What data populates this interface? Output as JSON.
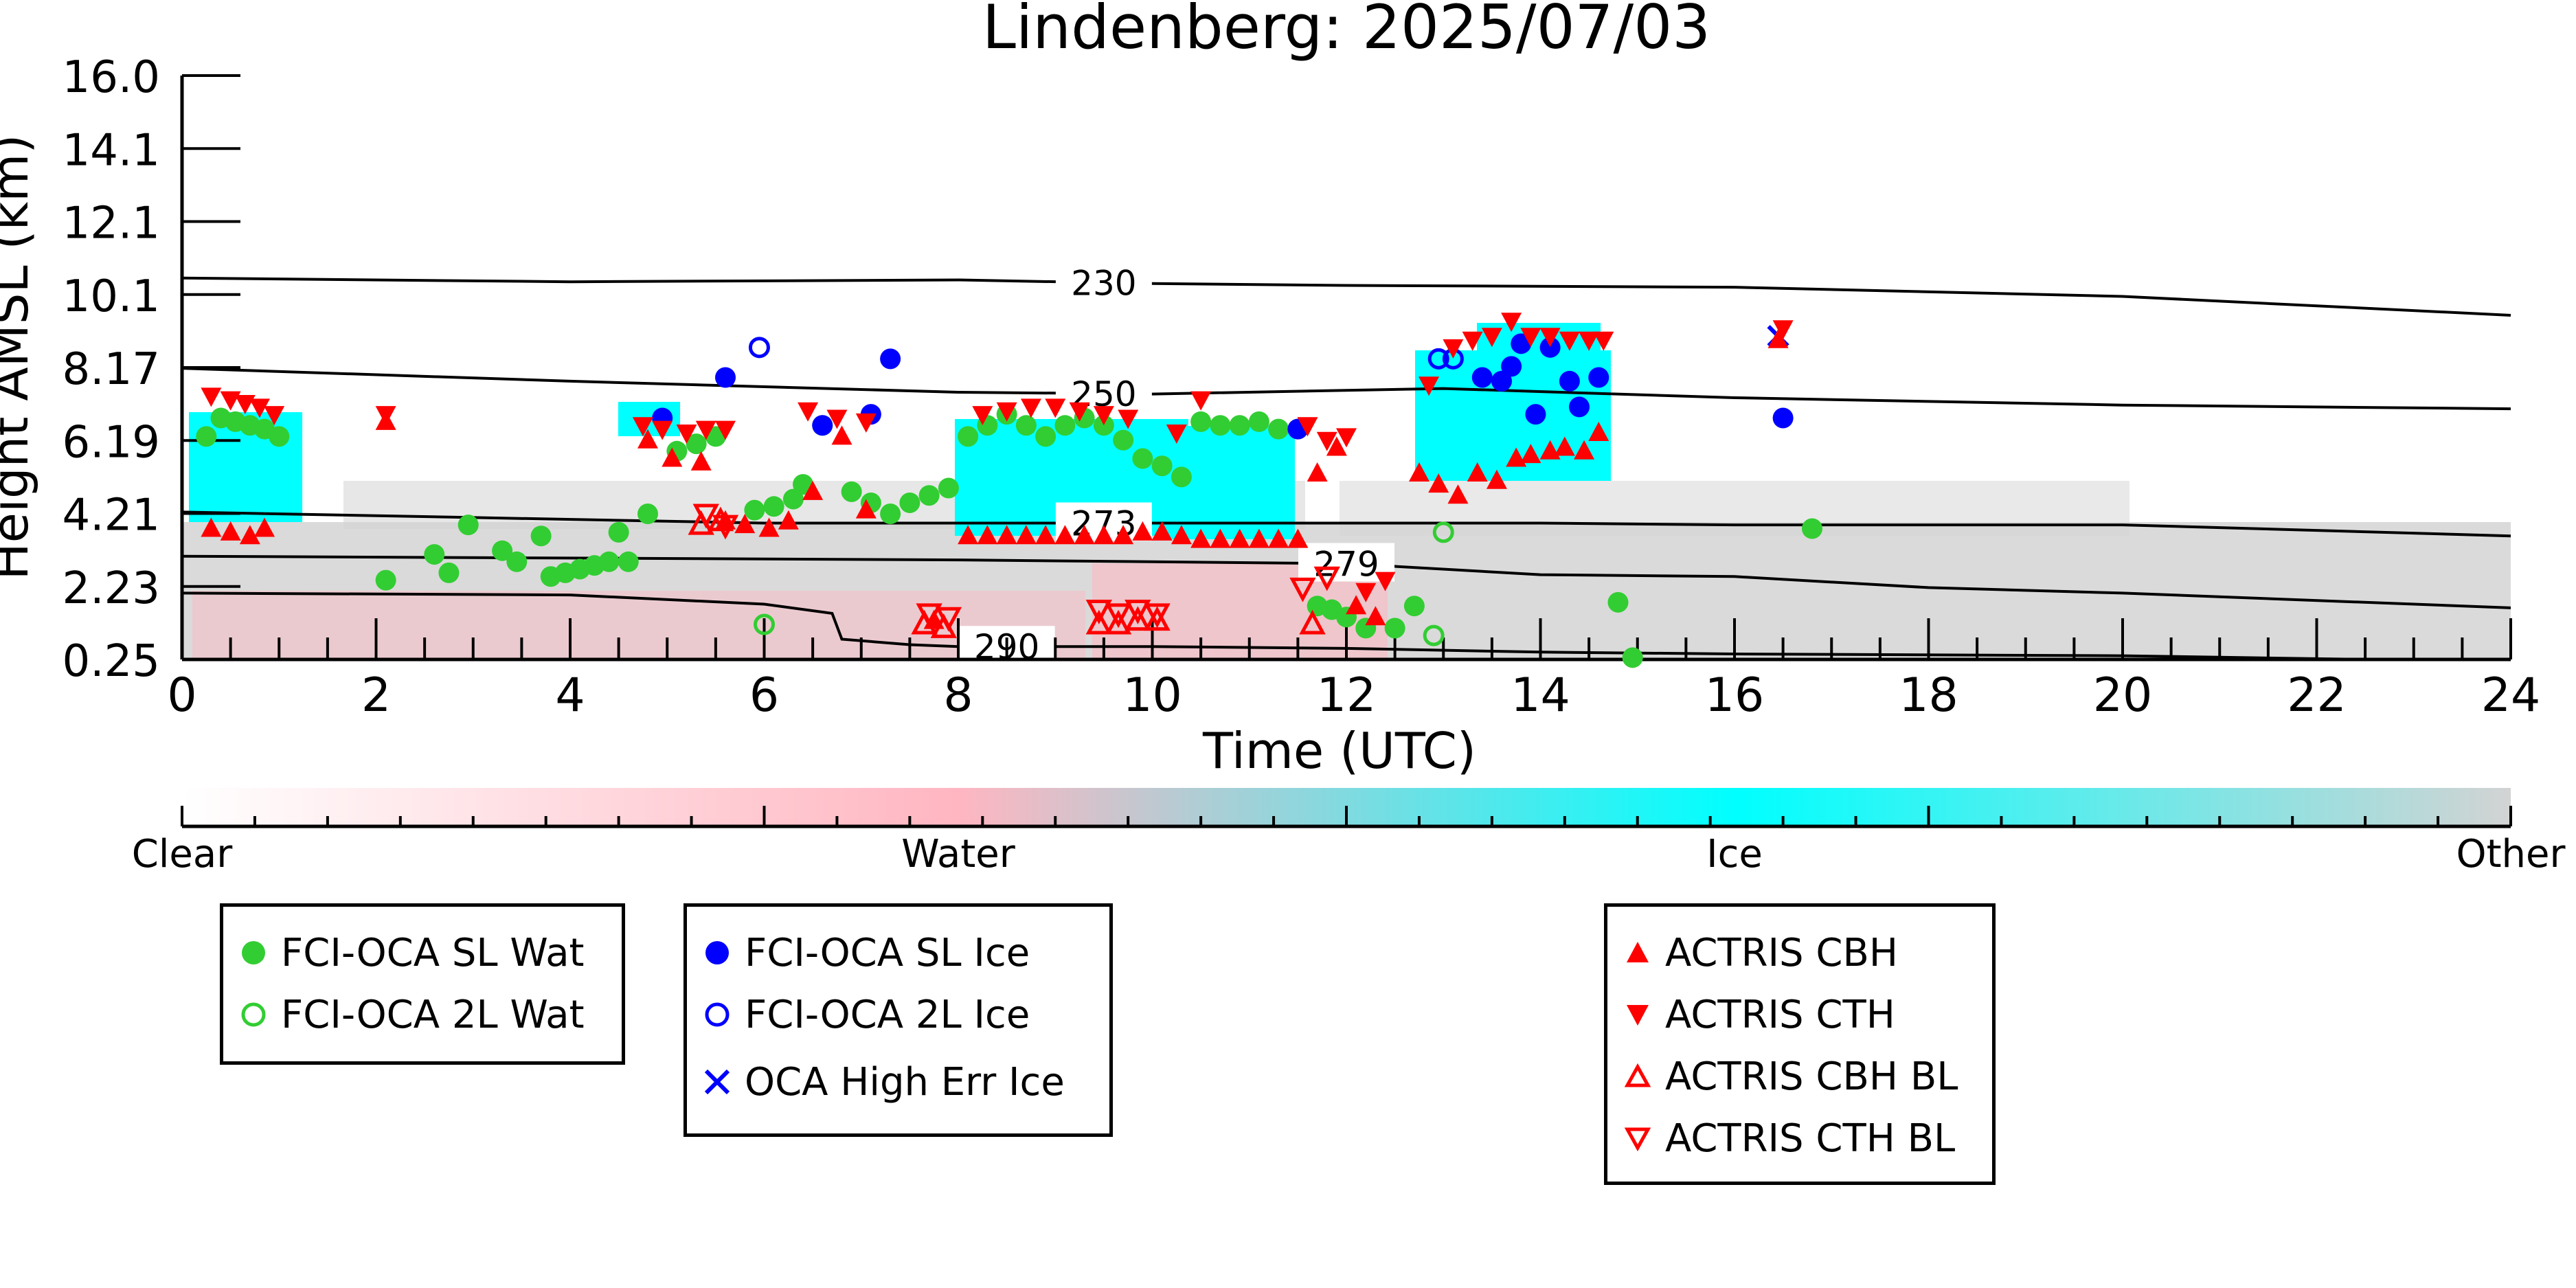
{
  "chart_data": {
    "type": "scatter",
    "title": "Lindenberg: 2025/07/03",
    "xlabel": "Time (UTC)",
    "ylabel": "Height AMSL (km)",
    "xlim": [
      0,
      24
    ],
    "ylim": [
      0.25,
      16.0
    ],
    "x_ticks": [
      0,
      2,
      4,
      6,
      8,
      10,
      12,
      14,
      16,
      18,
      20,
      22,
      24
    ],
    "y_ticks": [
      "0.25",
      "2.23",
      "4.21",
      "6.19",
      "8.17",
      "10.1",
      "12.1",
      "14.1",
      "16.0"
    ],
    "y_tick_values": [
      0.25,
      2.23,
      4.21,
      6.19,
      8.17,
      10.1,
      12.1,
      14.1,
      16.0
    ],
    "colorbar": {
      "labels": [
        "Clear",
        "Water",
        "Ice",
        "Other"
      ],
      "colors": [
        "#ffffff",
        "#ffb6c1",
        "#00ffff",
        "#d3d3d3"
      ]
    },
    "contours": [
      {
        "label": "230",
        "label_x": 9.5,
        "points": [
          [
            0,
            10.55
          ],
          [
            4,
            10.45
          ],
          [
            8,
            10.5
          ],
          [
            10,
            10.4
          ],
          [
            12,
            10.35
          ],
          [
            16,
            10.3
          ],
          [
            20,
            10.05
          ],
          [
            24,
            9.55
          ]
        ]
      },
      {
        "label": "250",
        "label_x": 9.5,
        "points": [
          [
            0,
            8.15
          ],
          [
            4,
            7.8
          ],
          [
            8,
            7.5
          ],
          [
            10,
            7.45
          ],
          [
            13,
            7.6
          ],
          [
            16,
            7.35
          ],
          [
            20,
            7.15
          ],
          [
            24,
            7.05
          ]
        ]
      },
      {
        "label": "273",
        "label_x": 9.5,
        "points": [
          [
            0,
            4.25
          ],
          [
            3,
            4.1
          ],
          [
            6,
            3.95
          ],
          [
            8,
            3.95
          ],
          [
            10,
            3.95
          ],
          [
            12,
            3.95
          ],
          [
            14,
            3.95
          ],
          [
            16,
            3.9
          ],
          [
            20,
            3.9
          ],
          [
            24,
            3.6
          ]
        ]
      },
      {
        "label": "279",
        "label_x": 12.0,
        "points": [
          [
            0,
            3.05
          ],
          [
            4,
            3.0
          ],
          [
            8,
            2.95
          ],
          [
            12,
            2.85
          ],
          [
            14,
            2.55
          ],
          [
            16,
            2.5
          ],
          [
            18,
            2.2
          ],
          [
            20,
            2.05
          ],
          [
            24,
            1.65
          ]
        ]
      },
      {
        "label": "290",
        "label_x": 8.5,
        "points": [
          [
            0,
            2.05
          ],
          [
            4,
            2.0
          ],
          [
            6,
            1.75
          ],
          [
            6.7,
            1.5
          ],
          [
            6.8,
            0.8
          ],
          [
            7.5,
            0.65
          ],
          [
            8,
            0.6
          ],
          [
            10,
            0.6
          ],
          [
            12,
            0.55
          ],
          [
            14,
            0.45
          ],
          [
            16,
            0.4
          ],
          [
            20,
            0.35
          ],
          [
            22.5,
            0.25
          ]
        ]
      }
    ],
    "series": [
      {
        "name": "FCI-OCA SL Wat",
        "marker": "circle-filled",
        "color": "#32cd32",
        "points": [
          [
            0.25,
            6.3
          ],
          [
            0.4,
            6.8
          ],
          [
            0.55,
            6.7
          ],
          [
            0.7,
            6.6
          ],
          [
            0.85,
            6.5
          ],
          [
            1.0,
            6.3
          ],
          [
            2.1,
            2.4
          ],
          [
            2.6,
            3.1
          ],
          [
            2.75,
            2.6
          ],
          [
            2.95,
            3.9
          ],
          [
            3.3,
            3.2
          ],
          [
            3.45,
            2.9
          ],
          [
            3.7,
            3.6
          ],
          [
            3.8,
            2.5
          ],
          [
            3.95,
            2.6
          ],
          [
            4.1,
            2.7
          ],
          [
            4.25,
            2.8
          ],
          [
            4.4,
            2.9
          ],
          [
            4.5,
            3.7
          ],
          [
            4.6,
            2.9
          ],
          [
            4.8,
            4.2
          ],
          [
            5.1,
            5.9
          ],
          [
            5.3,
            6.1
          ],
          [
            5.5,
            6.3
          ],
          [
            5.9,
            4.3
          ],
          [
            6.1,
            4.4
          ],
          [
            6.3,
            4.6
          ],
          [
            6.4,
            5.0
          ],
          [
            6.6,
            6.6
          ],
          [
            6.9,
            4.8
          ],
          [
            7.1,
            4.5
          ],
          [
            7.3,
            4.2
          ],
          [
            7.5,
            4.5
          ],
          [
            7.7,
            4.7
          ],
          [
            7.9,
            4.9
          ],
          [
            8.1,
            6.3
          ],
          [
            8.3,
            6.6
          ],
          [
            8.5,
            6.9
          ],
          [
            8.7,
            6.6
          ],
          [
            8.9,
            6.3
          ],
          [
            9.1,
            6.6
          ],
          [
            9.3,
            6.8
          ],
          [
            9.5,
            6.6
          ],
          [
            9.7,
            6.2
          ],
          [
            9.9,
            5.7
          ],
          [
            10.1,
            5.5
          ],
          [
            10.3,
            5.2
          ],
          [
            10.5,
            6.7
          ],
          [
            10.7,
            6.6
          ],
          [
            10.9,
            6.6
          ],
          [
            11.1,
            6.7
          ],
          [
            11.3,
            6.5
          ],
          [
            11.5,
            6.5
          ],
          [
            11.7,
            1.7
          ],
          [
            11.85,
            1.6
          ],
          [
            12.0,
            1.4
          ],
          [
            12.2,
            1.1
          ],
          [
            12.5,
            1.1
          ],
          [
            12.7,
            1.7
          ],
          [
            14.8,
            1.8
          ],
          [
            14.95,
            0.3
          ],
          [
            16.8,
            3.8
          ]
        ]
      },
      {
        "name": "FCI-OCA 2L Wat",
        "marker": "circle-open",
        "color": "#32cd32",
        "points": [
          [
            6.0,
            1.2
          ],
          [
            12.9,
            0.9
          ],
          [
            13.0,
            3.7
          ]
        ]
      },
      {
        "name": "FCI-OCA SL Ice",
        "marker": "circle-filled",
        "color": "#0000ff",
        "points": [
          [
            4.95,
            6.8
          ],
          [
            5.6,
            7.9
          ],
          [
            6.6,
            6.6
          ],
          [
            7.1,
            6.9
          ],
          [
            7.3,
            8.4
          ],
          [
            11.5,
            6.5
          ],
          [
            13.4,
            7.9
          ],
          [
            13.6,
            7.8
          ],
          [
            13.7,
            8.2
          ],
          [
            13.8,
            8.8
          ],
          [
            13.95,
            6.9
          ],
          [
            14.1,
            8.7
          ],
          [
            14.3,
            7.8
          ],
          [
            14.4,
            7.1
          ],
          [
            14.6,
            7.9
          ],
          [
            16.5,
            6.8
          ]
        ]
      },
      {
        "name": "FCI-OCA 2L Ice",
        "marker": "circle-open",
        "color": "#0000ff",
        "points": [
          [
            5.95,
            8.7
          ],
          [
            12.95,
            8.4
          ],
          [
            13.1,
            8.4
          ]
        ]
      },
      {
        "name": "OCA High Err Ice",
        "marker": "x",
        "color": "#0000ff",
        "points": [
          [
            16.45,
            9.0
          ]
        ]
      },
      {
        "name": "ACTRIS CBH",
        "marker": "triangle-up-filled",
        "color": "#ff0000",
        "points": [
          [
            0.3,
            3.8
          ],
          [
            0.5,
            3.7
          ],
          [
            0.7,
            3.6
          ],
          [
            0.85,
            3.8
          ],
          [
            2.1,
            6.7
          ],
          [
            4.8,
            6.2
          ],
          [
            5.05,
            5.7
          ],
          [
            5.35,
            5.6
          ],
          [
            5.6,
            4.0
          ],
          [
            5.8,
            3.9
          ],
          [
            6.05,
            3.8
          ],
          [
            6.25,
            4.0
          ],
          [
            6.5,
            4.8
          ],
          [
            6.8,
            6.3
          ],
          [
            7.05,
            4.3
          ],
          [
            7.75,
            1.3
          ],
          [
            8.1,
            3.6
          ],
          [
            8.3,
            3.6
          ],
          [
            8.5,
            3.6
          ],
          [
            8.7,
            3.6
          ],
          [
            8.9,
            3.6
          ],
          [
            9.1,
            3.6
          ],
          [
            9.3,
            3.6
          ],
          [
            9.5,
            3.6
          ],
          [
            9.7,
            3.6
          ],
          [
            9.9,
            3.7
          ],
          [
            10.1,
            3.7
          ],
          [
            10.3,
            3.6
          ],
          [
            10.5,
            3.5
          ],
          [
            10.7,
            3.5
          ],
          [
            10.9,
            3.5
          ],
          [
            11.1,
            3.5
          ],
          [
            11.3,
            3.5
          ],
          [
            11.5,
            3.5
          ],
          [
            11.7,
            5.3
          ],
          [
            11.9,
            6.0
          ],
          [
            12.1,
            1.7
          ],
          [
            12.3,
            1.4
          ],
          [
            12.75,
            5.3
          ],
          [
            12.95,
            5.0
          ],
          [
            13.15,
            4.7
          ],
          [
            13.35,
            5.3
          ],
          [
            13.55,
            5.1
          ],
          [
            13.75,
            5.7
          ],
          [
            13.9,
            5.8
          ],
          [
            14.1,
            5.9
          ],
          [
            14.25,
            6.0
          ],
          [
            14.45,
            5.9
          ],
          [
            14.6,
            6.4
          ],
          [
            16.45,
            8.9
          ]
        ]
      },
      {
        "name": "ACTRIS CTH",
        "marker": "triangle-down-filled",
        "color": "#ff0000",
        "points": [
          [
            0.3,
            7.4
          ],
          [
            0.5,
            7.3
          ],
          [
            0.65,
            7.2
          ],
          [
            0.8,
            7.1
          ],
          [
            0.95,
            6.9
          ],
          [
            2.1,
            6.9
          ],
          [
            4.75,
            6.6
          ],
          [
            4.95,
            6.5
          ],
          [
            5.2,
            6.4
          ],
          [
            5.4,
            6.5
          ],
          [
            5.6,
            6.5
          ],
          [
            6.45,
            7.0
          ],
          [
            6.75,
            6.8
          ],
          [
            7.05,
            6.7
          ],
          [
            8.25,
            6.9
          ],
          [
            8.5,
            7.0
          ],
          [
            8.75,
            7.1
          ],
          [
            9.0,
            7.1
          ],
          [
            9.25,
            7.0
          ],
          [
            9.5,
            6.9
          ],
          [
            9.75,
            6.8
          ],
          [
            10.25,
            6.4
          ],
          [
            10.5,
            7.3
          ],
          [
            11.6,
            6.6
          ],
          [
            11.8,
            6.2
          ],
          [
            12.0,
            6.3
          ],
          [
            12.2,
            2.1
          ],
          [
            12.4,
            2.4
          ],
          [
            12.85,
            7.7
          ],
          [
            13.1,
            8.7
          ],
          [
            13.3,
            8.9
          ],
          [
            13.5,
            9.0
          ],
          [
            13.7,
            9.4
          ],
          [
            13.9,
            9.0
          ],
          [
            14.1,
            9.0
          ],
          [
            14.3,
            8.9
          ],
          [
            14.5,
            8.9
          ],
          [
            14.65,
            8.9
          ],
          [
            16.5,
            9.2
          ]
        ]
      },
      {
        "name": "ACTRIS CBH BL",
        "marker": "triangle-up-open",
        "color": "#ff0000",
        "points": [
          [
            5.35,
            3.9
          ],
          [
            5.55,
            4.0
          ],
          [
            7.65,
            1.2
          ],
          [
            7.85,
            1.1
          ],
          [
            9.45,
            1.2
          ],
          [
            9.65,
            1.2
          ],
          [
            9.85,
            1.3
          ],
          [
            10.05,
            1.3
          ],
          [
            11.65,
            1.2
          ]
        ]
      },
      {
        "name": "ACTRIS CTH BL",
        "marker": "triangle-down-open",
        "color": "#ff0000",
        "points": [
          [
            5.4,
            4.2
          ],
          [
            5.6,
            3.9
          ],
          [
            7.7,
            1.5
          ],
          [
            7.9,
            1.4
          ],
          [
            9.45,
            1.6
          ],
          [
            9.65,
            1.5
          ],
          [
            9.85,
            1.6
          ],
          [
            10.05,
            1.5
          ],
          [
            11.55,
            2.2
          ],
          [
            11.8,
            2.5
          ]
        ]
      }
    ]
  }
}
